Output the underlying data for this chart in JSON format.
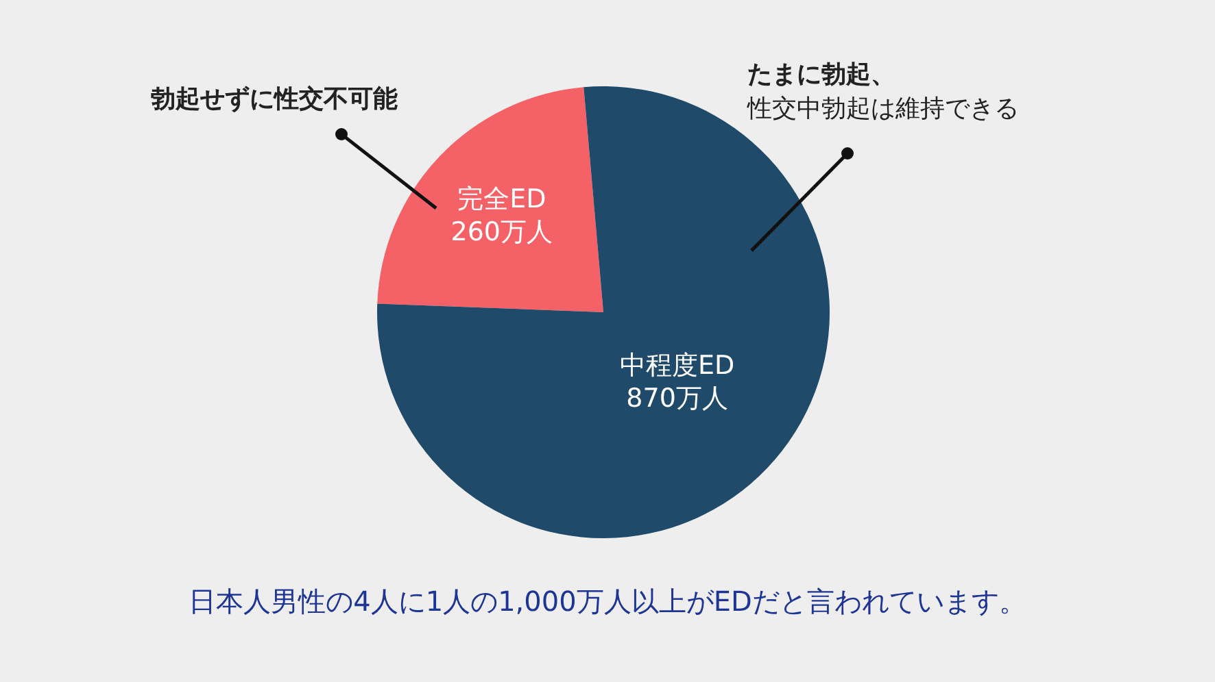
{
  "chart_data": {
    "type": "pie",
    "categories": [
      "完全ED",
      "中程度ED"
    ],
    "values": [
      260,
      870
    ],
    "colors": [
      "#f46166",
      "#1f4a6a"
    ],
    "value_labels": [
      "260万人",
      "870万人"
    ],
    "annotations": [
      "勃起せずに性交不可能",
      "たまに勃起、",
      "性交中勃起は維持できる",
      "日本人男性の4人に1人の1,000万人以上がEDだと言われています。"
    ]
  }
}
